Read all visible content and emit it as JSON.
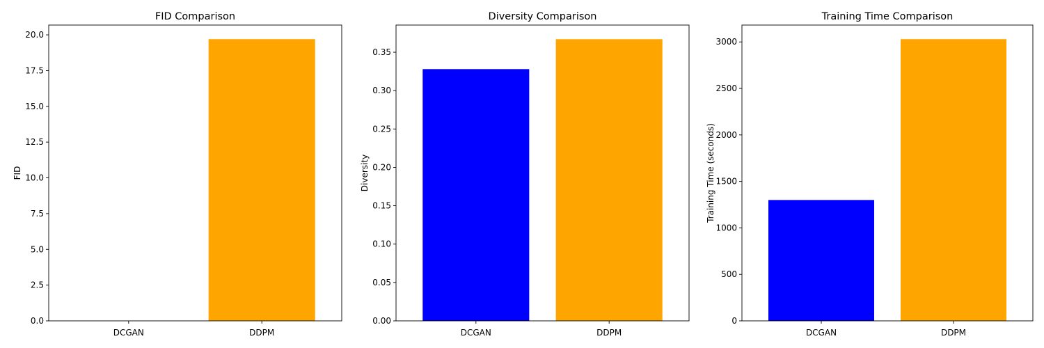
{
  "chart_data": [
    {
      "type": "bar",
      "title": "FID Comparison",
      "xlabel": "",
      "ylabel": "FID",
      "categories": [
        "DCGAN",
        "DDPM"
      ],
      "values": [
        0,
        19.7
      ],
      "colors": [
        "#0000ff",
        "#ffa500"
      ],
      "ylim": [
        0,
        20.685
      ],
      "yticks": [
        0,
        2.5,
        5,
        7.5,
        10,
        12.5,
        15,
        17.5,
        20
      ],
      "ytick_labels": [
        "0.0",
        "2.5",
        "5.0",
        "7.5",
        "10.0",
        "12.5",
        "15.0",
        "17.5",
        "20.0"
      ],
      "grid": false,
      "legend": "none"
    },
    {
      "type": "bar",
      "title": "Diversity Comparison",
      "xlabel": "",
      "ylabel": "Diversity",
      "categories": [
        "DCGAN",
        "DDPM"
      ],
      "values": [
        0.328,
        0.367
      ],
      "colors": [
        "#0000ff",
        "#ffa500"
      ],
      "ylim": [
        0,
        0.3854
      ],
      "yticks": [
        0,
        0.05,
        0.1,
        0.15,
        0.2,
        0.25,
        0.3,
        0.35
      ],
      "ytick_labels": [
        "0.00",
        "0.05",
        "0.10",
        "0.15",
        "0.20",
        "0.25",
        "0.30",
        "0.35"
      ],
      "grid": false,
      "legend": "none"
    },
    {
      "type": "bar",
      "title": "Training Time Comparison",
      "xlabel": "",
      "ylabel": "Training Time (seconds)",
      "categories": [
        "DCGAN",
        "DDPM"
      ],
      "values": [
        1300,
        3030
      ],
      "colors": [
        "#0000ff",
        "#ffa500"
      ],
      "ylim": [
        0,
        3181.5
      ],
      "yticks": [
        0,
        500,
        1000,
        1500,
        2000,
        2500,
        3000
      ],
      "ytick_labels": [
        "0",
        "500",
        "1000",
        "1500",
        "2000",
        "2500",
        "3000"
      ],
      "grid": false,
      "legend": "none"
    }
  ]
}
